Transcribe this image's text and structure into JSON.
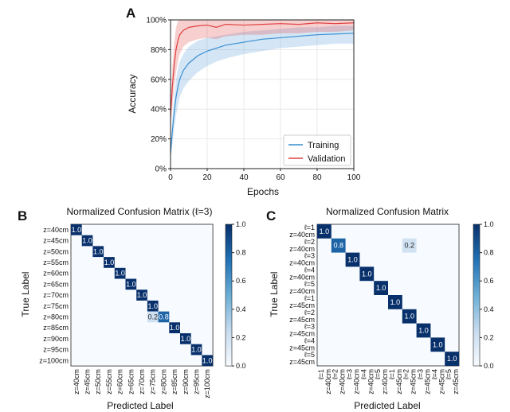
{
  "chart_data": [
    {
      "panel": "A",
      "type": "line",
      "title": "",
      "xlabel": "Epochs",
      "ylabel": "Accuracy",
      "xlim": [
        0,
        100
      ],
      "ylim": [
        0,
        100
      ],
      "xticks": [
        "0",
        "20",
        "40",
        "60",
        "80",
        "100"
      ],
      "yticks": [
        "0%",
        "20%",
        "40%",
        "60%",
        "80%",
        "100%"
      ],
      "legend_position": "bottom-right",
      "series": [
        {
          "name": "Training",
          "color": "#3a8fd0",
          "x": [
            0,
            1,
            2,
            3,
            4,
            5,
            7,
            10,
            15,
            20,
            25,
            30,
            40,
            50,
            60,
            70,
            80,
            90,
            100
          ],
          "y": [
            10,
            25,
            38,
            48,
            55,
            60,
            66,
            71,
            76,
            79,
            81,
            83,
            85,
            87,
            88,
            89,
            90,
            90.5,
            91
          ],
          "lower": [
            5,
            16,
            27,
            36,
            42,
            48,
            54,
            59,
            65,
            69,
            72,
            74,
            77,
            79,
            81,
            82,
            83,
            84,
            84
          ],
          "upper": [
            15,
            34,
            49,
            60,
            67,
            72,
            77,
            82,
            86,
            88,
            89,
            90,
            92,
            93,
            94,
            95,
            95,
            96,
            96
          ]
        },
        {
          "name": "Validation",
          "color": "#e04040",
          "x": [
            0,
            1,
            2,
            3,
            4,
            5,
            7,
            10,
            15,
            20,
            25,
            30,
            40,
            50,
            60,
            70,
            80,
            90,
            100
          ],
          "y": [
            35,
            55,
            70,
            80,
            86,
            90,
            93,
            95,
            96,
            96.5,
            95,
            97,
            96.5,
            97,
            97.5,
            97,
            98,
            97.5,
            98
          ],
          "lower": [
            25,
            42,
            55,
            65,
            72,
            77,
            82,
            85,
            87,
            88,
            87,
            89,
            90,
            90,
            91,
            91,
            92,
            92,
            93
          ],
          "upper": [
            45,
            68,
            85,
            95,
            99,
            100,
            100,
            100,
            100,
            100,
            100,
            100,
            100,
            100,
            100,
            100,
            100,
            100,
            100
          ]
        }
      ]
    },
    {
      "panel": "B",
      "type": "heatmap",
      "title": "Normalized Confusion Matrix (ℓ=3)",
      "xlabel": "Predicted Label",
      "ylabel": "True Label",
      "labels": [
        "z=40cm",
        "z=45cm",
        "z=50cm",
        "z=55cm",
        "z=60cm",
        "z=65cm",
        "z=70cm",
        "z=75cm",
        "z=80cm",
        "z=85cm",
        "z=90cm",
        "z=95cm",
        "z=100cm"
      ],
      "cells": [
        {
          "row": 0,
          "col": 0,
          "value": 1.0,
          "label": "1.0"
        },
        {
          "row": 1,
          "col": 1,
          "value": 1.0,
          "label": "1.0"
        },
        {
          "row": 2,
          "col": 2,
          "value": 1.0,
          "label": "1.0"
        },
        {
          "row": 3,
          "col": 3,
          "value": 1.0,
          "label": "1.0"
        },
        {
          "row": 4,
          "col": 4,
          "value": 1.0,
          "label": "1.0"
        },
        {
          "row": 5,
          "col": 5,
          "value": 1.0,
          "label": "1.0"
        },
        {
          "row": 6,
          "col": 6,
          "value": 1.0,
          "label": "1.0"
        },
        {
          "row": 7,
          "col": 7,
          "value": 1.0,
          "label": "1.0"
        },
        {
          "row": 8,
          "col": 7,
          "value": 0.2,
          "label": "0.2"
        },
        {
          "row": 8,
          "col": 8,
          "value": 0.8,
          "label": "0.8"
        },
        {
          "row": 9,
          "col": 9,
          "value": 1.0,
          "label": "1.0"
        },
        {
          "row": 10,
          "col": 10,
          "value": 1.0,
          "label": "1.0"
        },
        {
          "row": 11,
          "col": 11,
          "value": 1.0,
          "label": "1.0"
        },
        {
          "row": 12,
          "col": 12,
          "value": 1.0,
          "label": "1.0"
        }
      ],
      "colorbar_ticks": [
        "0.0",
        "0.2",
        "0.4",
        "0.6",
        "0.8",
        "1.0"
      ]
    },
    {
      "panel": "C",
      "type": "heatmap",
      "title": "Normalized Confusion Matrix",
      "xlabel": "Predicted Label",
      "ylabel": "True Label",
      "labels": [
        {
          "l": "ℓ=1",
          "z": "z=40cm"
        },
        {
          "l": "ℓ=2",
          "z": "z=40cm"
        },
        {
          "l": "ℓ=3",
          "z": "z=40cm"
        },
        {
          "l": "ℓ=4",
          "z": "z=40cm"
        },
        {
          "l": "ℓ=5",
          "z": "z=40cm"
        },
        {
          "l": "ℓ=1",
          "z": "z=45cm"
        },
        {
          "l": "ℓ=2",
          "z": "z=45cm"
        },
        {
          "l": "ℓ=3",
          "z": "z=45cm"
        },
        {
          "l": "ℓ=4",
          "z": "z=45cm"
        },
        {
          "l": "ℓ=5",
          "z": "z=45cm"
        }
      ],
      "cells": [
        {
          "row": 0,
          "col": 0,
          "value": 1.0,
          "label": "1.0"
        },
        {
          "row": 1,
          "col": 1,
          "value": 0.8,
          "label": "0.8"
        },
        {
          "row": 1,
          "col": 6,
          "value": 0.2,
          "label": "0.2"
        },
        {
          "row": 2,
          "col": 2,
          "value": 1.0,
          "label": "1.0"
        },
        {
          "row": 3,
          "col": 3,
          "value": 1.0,
          "label": "1.0"
        },
        {
          "row": 4,
          "col": 4,
          "value": 1.0,
          "label": "1.0"
        },
        {
          "row": 5,
          "col": 5,
          "value": 1.0,
          "label": "1.0"
        },
        {
          "row": 6,
          "col": 6,
          "value": 1.0,
          "label": "1.0"
        },
        {
          "row": 7,
          "col": 7,
          "value": 1.0,
          "label": "1.0"
        },
        {
          "row": 8,
          "col": 8,
          "value": 1.0,
          "label": "1.0"
        },
        {
          "row": 9,
          "col": 9,
          "value": 1.0,
          "label": "1.0"
        }
      ],
      "colorbar_ticks": [
        "0.0",
        "0.2",
        "0.4",
        "0.6",
        "0.8",
        "1.0"
      ]
    }
  ]
}
